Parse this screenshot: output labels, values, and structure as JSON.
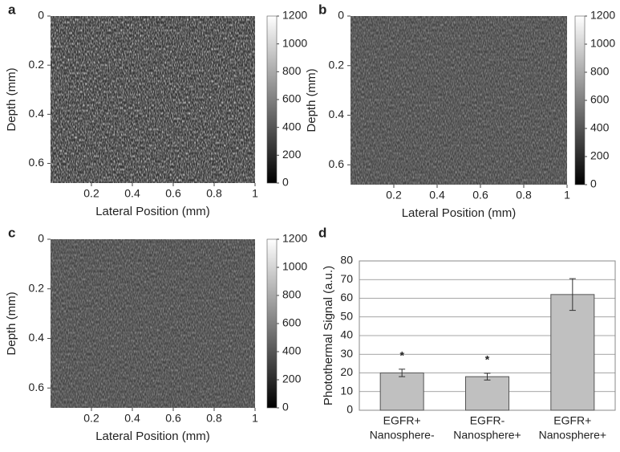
{
  "chart_data": [
    {
      "type": "heatmap",
      "panel_label": "a",
      "xlabel": "Lateral Position (mm)",
      "ylabel": "Depth (mm)",
      "xlim": [
        0,
        1
      ],
      "xticks": [
        0.2,
        0.4,
        0.6,
        0.8,
        1
      ],
      "ylim": [
        0,
        0.68
      ],
      "yticks": [
        0,
        0.2,
        0.4,
        0.6
      ],
      "y_inverted": true,
      "colorbar": {
        "lim": [
          0,
          1200
        ],
        "ticks": [
          0,
          200,
          400,
          600,
          800,
          1000,
          1200
        ]
      }
    },
    {
      "type": "heatmap",
      "panel_label": "b",
      "xlabel": "Lateral Position (mm)",
      "ylabel": "Depth (mm)",
      "xlim": [
        0,
        1
      ],
      "xticks": [
        0.2,
        0.4,
        0.6,
        0.8,
        1
      ],
      "ylim": [
        0,
        0.68
      ],
      "yticks": [
        0,
        0.2,
        0.4,
        0.6
      ],
      "y_inverted": true,
      "colorbar": {
        "lim": [
          0,
          1200
        ],
        "ticks": [
          0,
          200,
          400,
          600,
          800,
          1000,
          1200
        ]
      }
    },
    {
      "type": "heatmap",
      "panel_label": "c",
      "xlabel": "Lateral Position (mm)",
      "ylabel": "Depth (mm)",
      "xlim": [
        0,
        1
      ],
      "xticks": [
        0.2,
        0.4,
        0.6,
        0.8,
        1
      ],
      "ylim": [
        0,
        0.68
      ],
      "yticks": [
        0,
        0.2,
        0.4,
        0.6
      ],
      "y_inverted": true,
      "colorbar": {
        "lim": [
          0,
          1200
        ],
        "ticks": [
          0,
          200,
          400,
          600,
          800,
          1000,
          1200
        ]
      }
    },
    {
      "type": "bar",
      "panel_label": "d",
      "ylabel": "Photothermal Signal (a.u.)",
      "categories": [
        [
          "EGFR+",
          "Nanosphere-"
        ],
        [
          "EGFR-",
          "Nanosphere+"
        ],
        [
          "EGFR+",
          "Nanosphere+"
        ]
      ],
      "values": [
        20,
        18,
        62
      ],
      "errors": [
        2,
        1.8,
        8.5
      ],
      "markers": [
        "*",
        "*",
        null
      ],
      "color": "#c0c0c0",
      "ylim": [
        0,
        80
      ],
      "yticks": [
        0,
        10,
        20,
        30,
        40,
        50,
        60,
        70,
        80
      ],
      "grid": true
    }
  ]
}
